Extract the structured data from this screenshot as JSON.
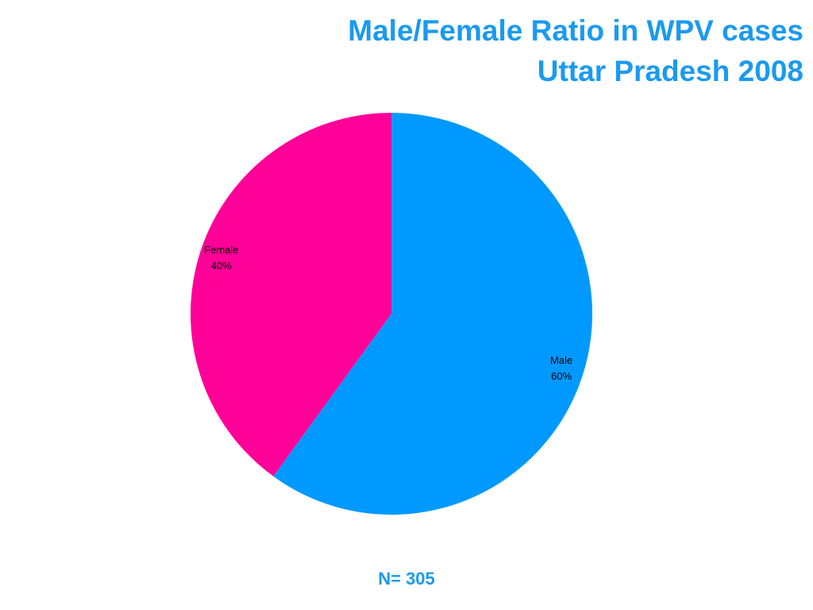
{
  "chart_data": {
    "type": "pie",
    "title": "Male/Female Ratio in WPV cases",
    "subtitle": "Uttar Pradesh 2008",
    "categories": [
      "Male",
      "Female"
    ],
    "values": [
      60,
      40
    ],
    "value_labels": [
      "60%",
      "40%"
    ],
    "colors": [
      "#0099ff",
      "#ff0099"
    ],
    "annotation": "N= 305"
  }
}
